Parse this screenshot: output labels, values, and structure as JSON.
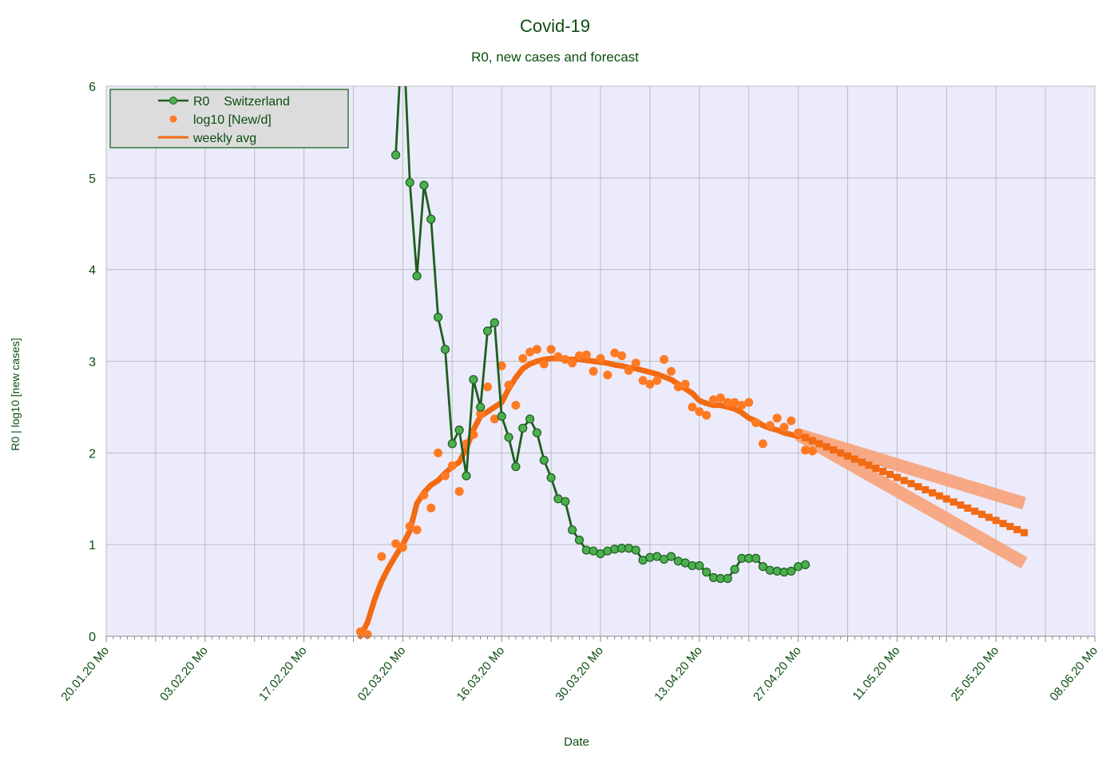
{
  "colors": {
    "text": "#0b4d10",
    "plot_bg": "#ebebfc",
    "grid": "#bdbdbd",
    "r0_line": "#1e5e1e",
    "r0_marker": "#4caf50",
    "cases": "#ff7a22",
    "avg": "#f26a12",
    "band": "#f7a277",
    "legend_bg": "#dcdcdc",
    "legend_border": "#0b5d10"
  },
  "chart_data": {
    "type": "line",
    "title": "Covid-19",
    "subtitle": "R0, new cases and forecast",
    "xlabel": "Date",
    "ylabel": "R0 | log10 [new cases]",
    "ylim": [
      0,
      6
    ],
    "yticks": [
      0,
      1,
      2,
      3,
      4,
      5,
      6
    ],
    "xlim": [
      "20.01.20",
      "08.06.20"
    ],
    "xticks": [
      "20.01.20 Mo",
      "03.02.20 Mo",
      "17.02.20 Mo",
      "02.03.20 Mo",
      "16.03.20 Mo",
      "30.03.20 Mo",
      "13.04.20 Mo",
      "27.04.20 Mo",
      "11.05.20 Mo",
      "25.05.20 Mo",
      "08.06.20 Mo"
    ],
    "grid": true,
    "legend": "top-left",
    "legend_entries": [
      "R0    Switzerland",
      "log10 [New/d]",
      "weekly avg"
    ],
    "series": [
      {
        "name": "R0    Switzerland",
        "kind": "line-marker",
        "start": "01.03.20",
        "values": [
          5.25,
          6.7,
          4.95,
          3.93,
          4.92,
          4.55,
          3.48,
          3.13,
          2.1,
          2.25,
          1.75,
          2.8,
          2.5,
          3.33,
          3.42,
          2.4,
          2.17,
          1.85,
          2.27,
          2.37,
          2.22,
          1.92,
          1.73,
          1.5,
          1.47,
          1.16,
          1.05,
          0.94,
          0.93,
          0.9,
          0.93,
          0.95,
          0.96,
          0.96,
          0.94,
          0.83,
          0.86,
          0.87,
          0.84,
          0.87,
          0.82,
          0.8,
          0.77,
          0.77,
          0.7,
          0.64,
          0.63,
          0.63,
          0.73,
          0.85,
          0.85,
          0.85,
          0.76,
          0.72,
          0.71,
          0.7,
          0.71,
          0.76,
          0.78
        ]
      },
      {
        "name": "log10 [New/d]",
        "kind": "scatter",
        "start": "25.02.20",
        "values": [
          0.05,
          0.02,
          null,
          0.87,
          null,
          1.01,
          0.97,
          1.2,
          1.16,
          1.54,
          1.4,
          2.0,
          1.75,
          1.86,
          1.58,
          2.1,
          2.2,
          2.43,
          2.72,
          2.37,
          2.95,
          2.74,
          2.52,
          3.03,
          3.1,
          3.13,
          2.97,
          3.13,
          3.05,
          3.02,
          2.98,
          3.06,
          3.07,
          2.89,
          3.03,
          2.85,
          3.09,
          3.06,
          2.9,
          2.98,
          2.79,
          2.75,
          2.79,
          3.02,
          2.89,
          2.72,
          2.75,
          2.5,
          2.45,
          2.41,
          2.58,
          2.6,
          2.55,
          2.55,
          2.52,
          2.55,
          2.33,
          2.1,
          2.3,
          2.38,
          2.28,
          2.35,
          2.22,
          2.03,
          2.02
        ]
      },
      {
        "name": "weekly avg",
        "kind": "line",
        "start": "25.02.20",
        "values": [
          0.0,
          0.15,
          0.4,
          0.6,
          0.75,
          0.88,
          1.0,
          1.15,
          1.45,
          1.57,
          1.65,
          1.7,
          1.78,
          1.85,
          1.9,
          2.05,
          2.25,
          2.4,
          2.45,
          2.5,
          2.55,
          2.7,
          2.82,
          2.92,
          2.97,
          3.0,
          3.02,
          3.03,
          3.03,
          3.02,
          3.02,
          3.02,
          3.01,
          3.0,
          2.99,
          2.98,
          2.96,
          2.95,
          2.93,
          2.92,
          2.9,
          2.88,
          2.86,
          2.83,
          2.8,
          2.75,
          2.7,
          2.65,
          2.57,
          2.54,
          2.52,
          2.52,
          2.5,
          2.48,
          2.44,
          2.38,
          2.35,
          2.3,
          2.27,
          2.25,
          2.22,
          2.2,
          2.18
        ]
      },
      {
        "kind": "forecast-markers",
        "start": "27.04.20",
        "end": "29.05.20",
        "from": 2.2,
        "to": 1.13
      },
      {
        "kind": "forecast-band",
        "start": "27.04.20",
        "end": "29.05.20",
        "upper": [
          2.2,
          1.45
        ],
        "lower": [
          2.2,
          0.8
        ]
      }
    ]
  }
}
